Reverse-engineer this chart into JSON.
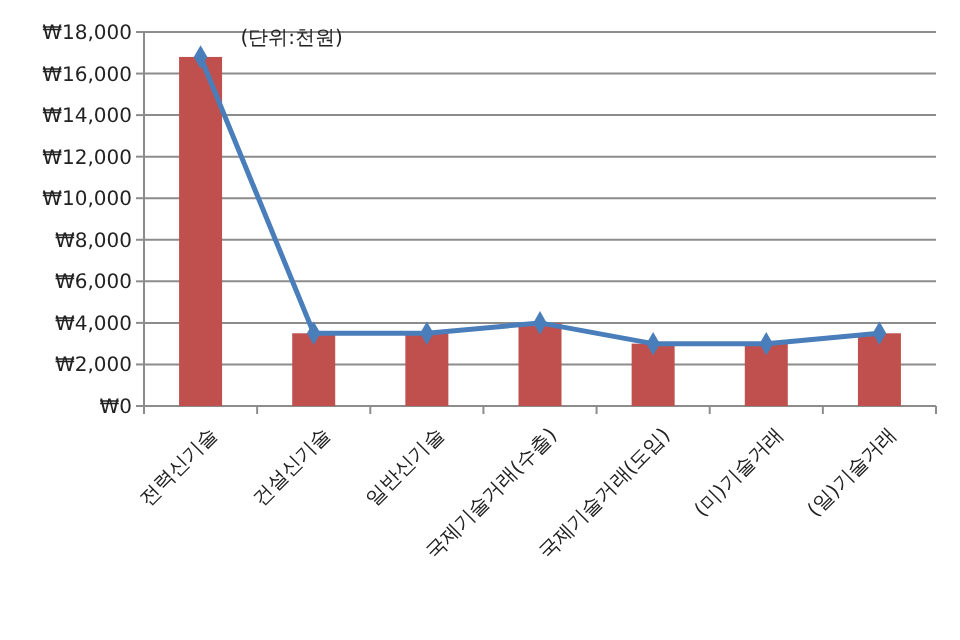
{
  "chart_data": {
    "type": "bar",
    "categories": [
      "전력신기술",
      "건설신기술",
      "일반신기술",
      "국제기술거래(수출)",
      "국제기술거래(도입)",
      "(미)기술거래",
      "(일)기술거래"
    ],
    "series": [
      {
        "color": "#c0504d",
        "values": [
          16800,
          3500,
          3500,
          4000,
          3000,
          3000,
          3500
        ]
      },
      {
        "type": "line",
        "color": "#4a7ebb",
        "marker": "diamond",
        "values": [
          16800,
          3500,
          3500,
          4000,
          3000,
          3000,
          3500
        ]
      }
    ],
    "ylim": [
      0,
      18000
    ],
    "yticks": [
      {
        "value": 0,
        "label": "₩0"
      },
      {
        "value": 2000,
        "label": "₩2,000"
      },
      {
        "value": 4000,
        "label": "₩4,000"
      },
      {
        "value": 6000,
        "label": "₩6,000"
      },
      {
        "value": 8000,
        "label": "₩8,000"
      },
      {
        "value": 10000,
        "label": "₩10,000"
      },
      {
        "value": 12000,
        "label": "₩12,000"
      },
      {
        "value": 14000,
        "label": "₩14,000"
      },
      {
        "value": 16000,
        "label": "₩16,000"
      },
      {
        "value": 18000,
        "label": "₩18,000"
      }
    ],
    "grid": "y",
    "annotations": [
      "(단위:천원)"
    ]
  }
}
